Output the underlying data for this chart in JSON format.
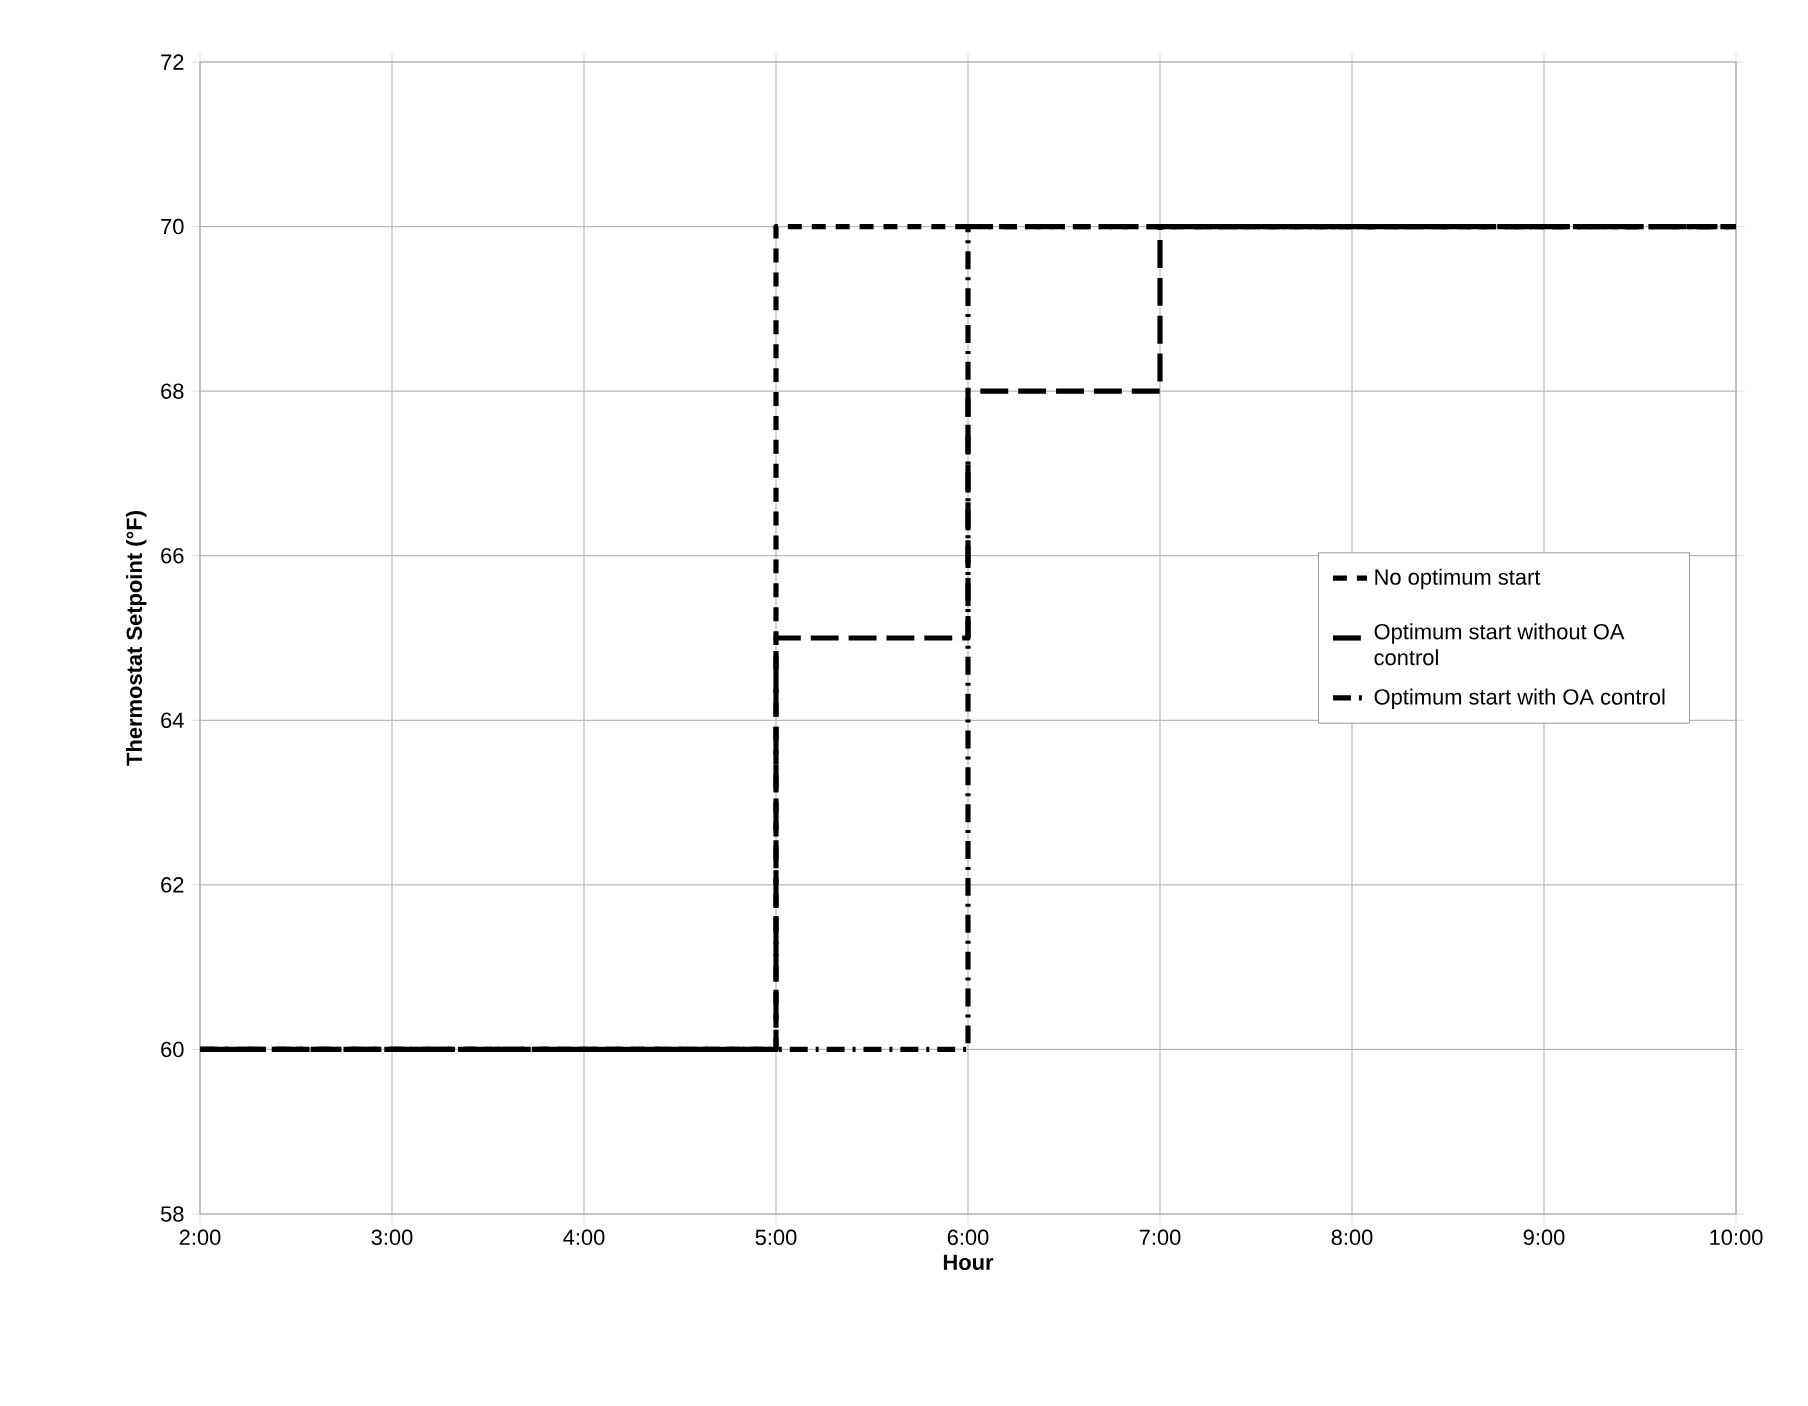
{
  "chart_data": {
    "type": "step",
    "xlabel": "Hour",
    "ylabel": "Thermostat Setpoint (°F)",
    "series": [
      {
        "name": "No optimum start",
        "color": "#000000",
        "line_style": "dashed",
        "x": [
          2,
          5,
          10
        ],
        "values": [
          60,
          70,
          70
        ]
      },
      {
        "name": "Optimum start without OA control",
        "color": "#000000",
        "line_style": "long dashed",
        "x": [
          2,
          5,
          6,
          7,
          10
        ],
        "values": [
          60,
          65,
          68,
          70,
          70
        ]
      },
      {
        "name": "Optimum start with OA control",
        "color": "#000000",
        "line_style": "dash dot",
        "x": [
          2,
          6,
          10
        ],
        "values": [
          60,
          70,
          70
        ]
      }
    ],
    "xlim": [
      2,
      10
    ],
    "xticks": [
      {
        "value": 2,
        "label": "2:00"
      },
      {
        "value": 3,
        "label": "3:00"
      },
      {
        "value": 4,
        "label": "4:00"
      },
      {
        "value": 5,
        "label": "5:00"
      },
      {
        "value": 6,
        "label": "6:00"
      },
      {
        "value": 7,
        "label": "7:00"
      },
      {
        "value": 8,
        "label": "8:00"
      },
      {
        "value": 9,
        "label": "9:00"
      },
      {
        "value": 10,
        "label": "10:00"
      }
    ],
    "ylim": [
      58,
      72
    ],
    "yticks": [
      58,
      60,
      62,
      64,
      66,
      68,
      70,
      72
    ],
    "grid": true,
    "legend": "right",
    "marker": "none"
  }
}
